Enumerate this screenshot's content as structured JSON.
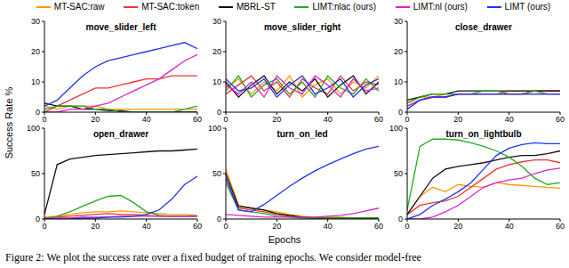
{
  "y_label": "Success Rate %",
  "x_label": "Epochs",
  "caption": "Figure 2: We plot the success rate over a fixed budget of training epochs. We consider model-free",
  "chart_data": [
    {
      "type": "line",
      "title": "move_slider_left",
      "x": [
        0,
        5,
        10,
        15,
        20,
        25,
        30,
        35,
        40,
        45,
        50,
        55,
        60
      ],
      "xlim": [
        0,
        60
      ],
      "xticks": [
        0,
        20,
        40,
        60
      ],
      "ylim": [
        0,
        30
      ],
      "yticks": [
        0,
        10,
        20,
        30
      ],
      "grid": false,
      "series": [
        {
          "name": "MT-SAC:raw",
          "color": "#ff9900",
          "values": [
            2,
            1,
            2,
            2,
            2,
            1,
            1,
            1,
            1,
            1,
            1,
            1,
            1
          ]
        },
        {
          "name": "MT-SAC:token",
          "color": "#ee3333",
          "values": [
            0,
            2,
            4,
            6,
            8,
            8,
            9,
            10,
            11,
            11,
            12,
            12,
            12
          ]
        },
        {
          "name": "MBRL-ST",
          "color": "#111111",
          "values": [
            3,
            2,
            2,
            1,
            1,
            0.5,
            0.5,
            0,
            0,
            0,
            0,
            0,
            0
          ]
        },
        {
          "name": "LIMT:nlac (ours)",
          "color": "#22aa22",
          "values": [
            1,
            2,
            2,
            2,
            1,
            1,
            0,
            0,
            0,
            0,
            0,
            1,
            2
          ]
        },
        {
          "name": "LIMT:nl (ours)",
          "color": "#dd22cc",
          "values": [
            0,
            0,
            1,
            1,
            2,
            3,
            5,
            7,
            9,
            11,
            14,
            17,
            19
          ]
        },
        {
          "name": "LIMT (ours)",
          "color": "#2233ee",
          "values": [
            2,
            4,
            8,
            12,
            15,
            17,
            18,
            19,
            20,
            21,
            22,
            23,
            21
          ]
        }
      ]
    },
    {
      "type": "line",
      "title": "move_slider_right",
      "x": [
        0,
        5,
        10,
        15,
        20,
        25,
        30,
        35,
        40,
        45,
        50,
        55,
        60
      ],
      "xlim": [
        0,
        60
      ],
      "xticks": [
        0,
        20,
        40,
        60
      ],
      "ylim": [
        0,
        30
      ],
      "yticks": [
        0,
        10,
        20,
        30
      ],
      "grid": false,
      "series": [
        {
          "name": "MT-SAC:raw",
          "color": "#ff9900",
          "values": [
            8,
            11,
            6,
            10,
            7,
            12,
            5,
            9,
            11,
            6,
            10,
            8,
            12
          ]
        },
        {
          "name": "MT-SAC:token",
          "color": "#ee3333",
          "values": [
            6,
            9,
            12,
            7,
            10,
            5,
            11,
            8,
            6,
            12,
            7,
            10,
            9
          ]
        },
        {
          "name": "MBRL-ST",
          "color": "#111111",
          "values": [
            10,
            5,
            9,
            12,
            6,
            10,
            7,
            11,
            5,
            9,
            12,
            6,
            10
          ]
        },
        {
          "name": "LIMT:nlac (ours)",
          "color": "#22aa22",
          "values": [
            7,
            12,
            5,
            9,
            11,
            6,
            10,
            5,
            12,
            8,
            6,
            11,
            7
          ]
        },
        {
          "name": "LIMT:nl (ours)",
          "color": "#dd22cc",
          "values": [
            9,
            6,
            10,
            5,
            12,
            8,
            6,
            12,
            9,
            5,
            11,
            7,
            8
          ]
        },
        {
          "name": "LIMT (ours)",
          "color": "#2233ee",
          "values": [
            11,
            7,
            8,
            11,
            5,
            9,
            12,
            6,
            8,
            11,
            5,
            9,
            11
          ]
        }
      ]
    },
    {
      "type": "line",
      "title": "close_drawer",
      "x": [
        0,
        5,
        10,
        15,
        20,
        25,
        30,
        35,
        40,
        45,
        50,
        55,
        60
      ],
      "xlim": [
        0,
        60
      ],
      "xticks": [
        0,
        20,
        40,
        60
      ],
      "ylim": [
        0,
        30
      ],
      "yticks": [
        0,
        10,
        20,
        30
      ],
      "grid": false,
      "series": [
        {
          "name": "MT-SAC:raw",
          "color": "#ff9900",
          "values": [
            3,
            5,
            5,
            6,
            6,
            6,
            6,
            6,
            7,
            7,
            7,
            7,
            7
          ]
        },
        {
          "name": "MT-SAC:token",
          "color": "#ee3333",
          "values": [
            2,
            4,
            5,
            5,
            6,
            6,
            6,
            6,
            6,
            6,
            7,
            7,
            7
          ]
        },
        {
          "name": "MBRL-ST",
          "color": "#111111",
          "values": [
            4,
            5,
            6,
            6,
            7,
            7,
            7,
            7,
            7,
            7,
            7,
            7,
            7
          ]
        },
        {
          "name": "LIMT:nlac (ours)",
          "color": "#22aa22",
          "values": [
            3,
            5,
            6,
            6,
            6,
            6,
            7,
            7,
            6,
            6,
            7,
            6,
            6
          ]
        },
        {
          "name": "LIMT:nl (ours)",
          "color": "#dd22cc",
          "values": [
            2,
            4,
            5,
            5,
            6,
            6,
            6,
            6,
            6,
            6,
            6,
            6,
            6
          ]
        },
        {
          "name": "LIMT (ours)",
          "color": "#2233ee",
          "values": [
            1,
            4,
            5,
            5,
            6,
            6,
            6,
            6,
            6,
            6,
            6,
            6,
            6
          ]
        }
      ]
    },
    {
      "type": "line",
      "title": "open_drawer",
      "x": [
        0,
        5,
        10,
        15,
        20,
        25,
        30,
        35,
        40,
        45,
        50,
        55,
        60
      ],
      "xlim": [
        0,
        60
      ],
      "xticks": [
        0,
        20,
        40,
        60
      ],
      "ylim": [
        0,
        100
      ],
      "yticks": [
        0,
        50,
        100
      ],
      "grid": false,
      "series": [
        {
          "name": "MT-SAC:raw",
          "color": "#ff9900",
          "values": [
            2,
            3,
            5,
            7,
            8,
            8,
            9,
            8,
            7,
            6,
            5,
            5,
            4
          ]
        },
        {
          "name": "MT-SAC:token",
          "color": "#ee3333",
          "values": [
            1,
            2,
            3,
            4,
            5,
            6,
            5,
            5,
            4,
            3,
            3,
            3,
            3
          ]
        },
        {
          "name": "MBRL-ST",
          "color": "#111111",
          "values": [
            5,
            60,
            66,
            68,
            70,
            71,
            72,
            73,
            74,
            75,
            75,
            76,
            77
          ]
        },
        {
          "name": "LIMT:nlac (ours)",
          "color": "#22aa22",
          "values": [
            0,
            3,
            8,
            14,
            20,
            25,
            26,
            18,
            8,
            4,
            3,
            3,
            3
          ]
        },
        {
          "name": "LIMT:nl (ours)",
          "color": "#dd22cc",
          "values": [
            0,
            1,
            1,
            2,
            2,
            2,
            3,
            3,
            3,
            3,
            3,
            3,
            3
          ]
        },
        {
          "name": "LIMT (ours)",
          "color": "#2233ee",
          "values": [
            0,
            0,
            0,
            1,
            1,
            2,
            2,
            3,
            5,
            10,
            22,
            38,
            47
          ]
        }
      ]
    },
    {
      "type": "line",
      "title": "turn_on_led",
      "x": [
        0,
        5,
        10,
        15,
        20,
        25,
        30,
        35,
        40,
        45,
        50,
        55,
        60
      ],
      "xlim": [
        0,
        60
      ],
      "xticks": [
        0,
        20,
        40,
        60
      ],
      "ylim": [
        0,
        100
      ],
      "yticks": [
        0,
        50,
        100
      ],
      "grid": false,
      "series": [
        {
          "name": "MT-SAC:raw",
          "color": "#ff9900",
          "values": [
            55,
            15,
            12,
            10,
            8,
            5,
            3,
            2,
            2,
            2,
            1,
            1,
            1
          ]
        },
        {
          "name": "MT-SAC:token",
          "color": "#ee3333",
          "values": [
            45,
            12,
            10,
            8,
            5,
            3,
            2,
            1,
            1,
            1,
            1,
            1,
            1
          ]
        },
        {
          "name": "MBRL-ST",
          "color": "#111111",
          "values": [
            50,
            14,
            12,
            10,
            6,
            4,
            2,
            1,
            1,
            1,
            1,
            1,
            1
          ]
        },
        {
          "name": "LIMT:nlac (ours)",
          "color": "#22aa22",
          "values": [
            40,
            10,
            8,
            6,
            3,
            2,
            1,
            1,
            1,
            1,
            1,
            1,
            1
          ]
        },
        {
          "name": "LIMT:nl (ours)",
          "color": "#dd22cc",
          "values": [
            5,
            4,
            3,
            2,
            2,
            2,
            2,
            2,
            3,
            4,
            6,
            9,
            12
          ]
        },
        {
          "name": "LIMT (ours)",
          "color": "#2233ee",
          "values": [
            45,
            10,
            8,
            16,
            26,
            36,
            45,
            53,
            60,
            66,
            72,
            77,
            80
          ]
        }
      ]
    },
    {
      "type": "line",
      "title": "turn_on_lightbulb",
      "x": [
        0,
        5,
        10,
        15,
        20,
        25,
        30,
        35,
        40,
        45,
        50,
        55,
        60
      ],
      "xlim": [
        0,
        60
      ],
      "xticks": [
        0,
        20,
        40,
        60
      ],
      "ylim": [
        0,
        100
      ],
      "yticks": [
        0,
        50,
        100
      ],
      "grid": false,
      "series": [
        {
          "name": "MT-SAC:raw",
          "color": "#ff9900",
          "values": [
            5,
            25,
            35,
            30,
            38,
            36,
            35,
            40,
            38,
            37,
            36,
            35,
            34
          ]
        },
        {
          "name": "MT-SAC:token",
          "color": "#ee3333",
          "values": [
            5,
            15,
            18,
            20,
            25,
            35,
            45,
            55,
            60,
            63,
            65,
            65,
            62
          ]
        },
        {
          "name": "MBRL-ST",
          "color": "#111111",
          "values": [
            5,
            25,
            45,
            55,
            58,
            60,
            62,
            65,
            68,
            70,
            70,
            72,
            75
          ]
        },
        {
          "name": "LIMT:nlac (ours)",
          "color": "#22aa22",
          "values": [
            10,
            80,
            88,
            88,
            87,
            84,
            80,
            75,
            68,
            58,
            45,
            38,
            40
          ]
        },
        {
          "name": "LIMT:nl (ours)",
          "color": "#dd22cc",
          "values": [
            0,
            0,
            2,
            8,
            15,
            25,
            35,
            40,
            43,
            45,
            50,
            54,
            56
          ]
        },
        {
          "name": "LIMT (ours)",
          "color": "#2233ee",
          "values": [
            0,
            5,
            15,
            22,
            30,
            40,
            55,
            70,
            78,
            82,
            84,
            83,
            83
          ]
        }
      ]
    }
  ]
}
